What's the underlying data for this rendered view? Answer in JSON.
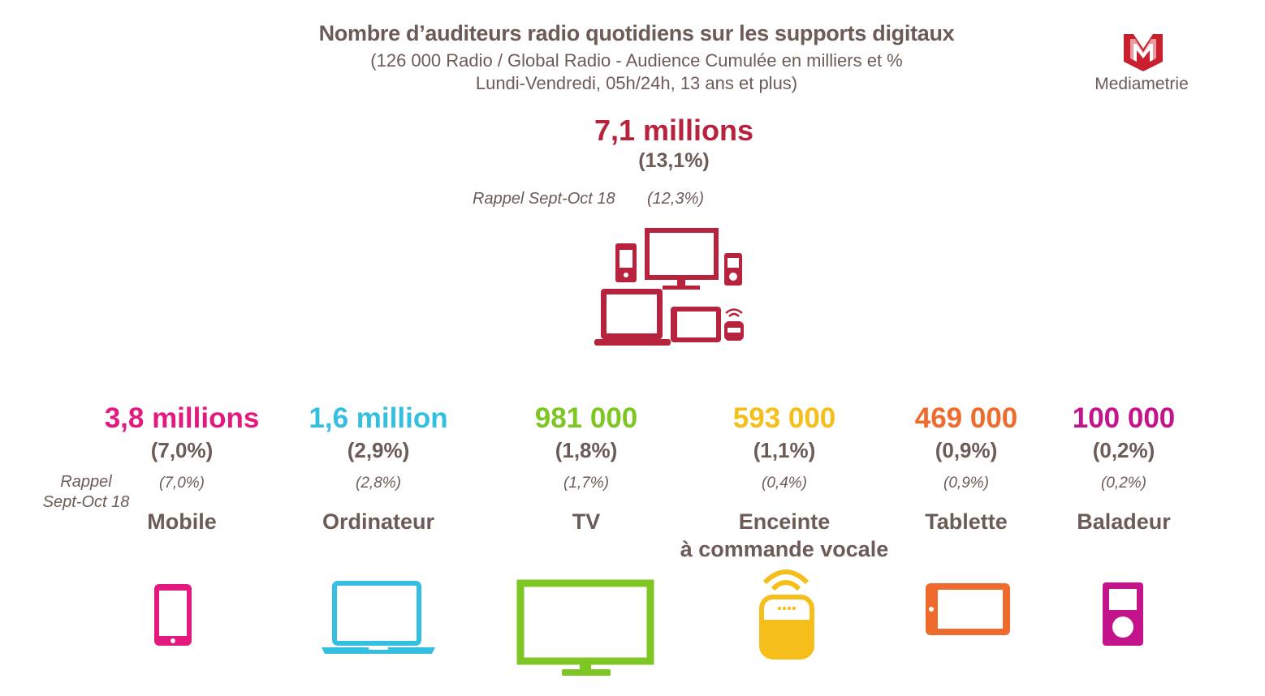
{
  "header": {
    "title": "Nombre d’auditeurs radio quotidiens sur les supports digitaux",
    "subtitle_line1": "(126 000 Radio / Global Radio - Audience Cumulée en milliers et %",
    "subtitle_line2": "Lundi-Vendredi, 05h/24h, 13 ans et plus)"
  },
  "logo": {
    "text": "Mediametrie",
    "letter": "M",
    "color": "#c8202f"
  },
  "total": {
    "value": "7,1 millions",
    "pct": "(13,1%)",
    "rappel_label": "Rappel Sept-Oct 18",
    "rappel_value": "(12,3%)",
    "color": "#b7223d",
    "icon": "multi-device-icon"
  },
  "rappel_side_label_line1": "Rappel",
  "rappel_side_label_line2": "Sept-Oct 18",
  "supports": [
    {
      "value": "3,8 millions",
      "pct": "(7,0%)",
      "prev": "(7,0%)",
      "label": "Mobile",
      "label2": "",
      "color": "#e3197e",
      "icon": "smartphone-icon"
    },
    {
      "value": "1,6 million",
      "pct": "(2,9%)",
      "prev": "(2,8%)",
      "label": "Ordinateur",
      "label2": "",
      "color": "#34bfe0",
      "icon": "laptop-icon"
    },
    {
      "value": "981 000",
      "pct": "(1,8%)",
      "prev": "(1,7%)",
      "label": "TV",
      "label2": "",
      "color": "#7ec623",
      "icon": "tv-icon"
    },
    {
      "value": "593 000",
      "pct": "(1,1%)",
      "prev": "(0,4%)",
      "label": "Enceinte",
      "label2": "à commande vocale",
      "color": "#f6be1a",
      "icon": "smart-speaker-icon"
    },
    {
      "value": "469 000",
      "pct": "(0,9%)",
      "prev": "(0,9%)",
      "label": "Tablette",
      "label2": "",
      "color": "#ee6a2d",
      "icon": "tablet-icon"
    },
    {
      "value": "100 000",
      "pct": "(0,2%)",
      "prev": "(0,2%)",
      "label": "Baladeur",
      "label2": "",
      "color": "#c3148b",
      "icon": "music-player-icon"
    }
  ]
}
